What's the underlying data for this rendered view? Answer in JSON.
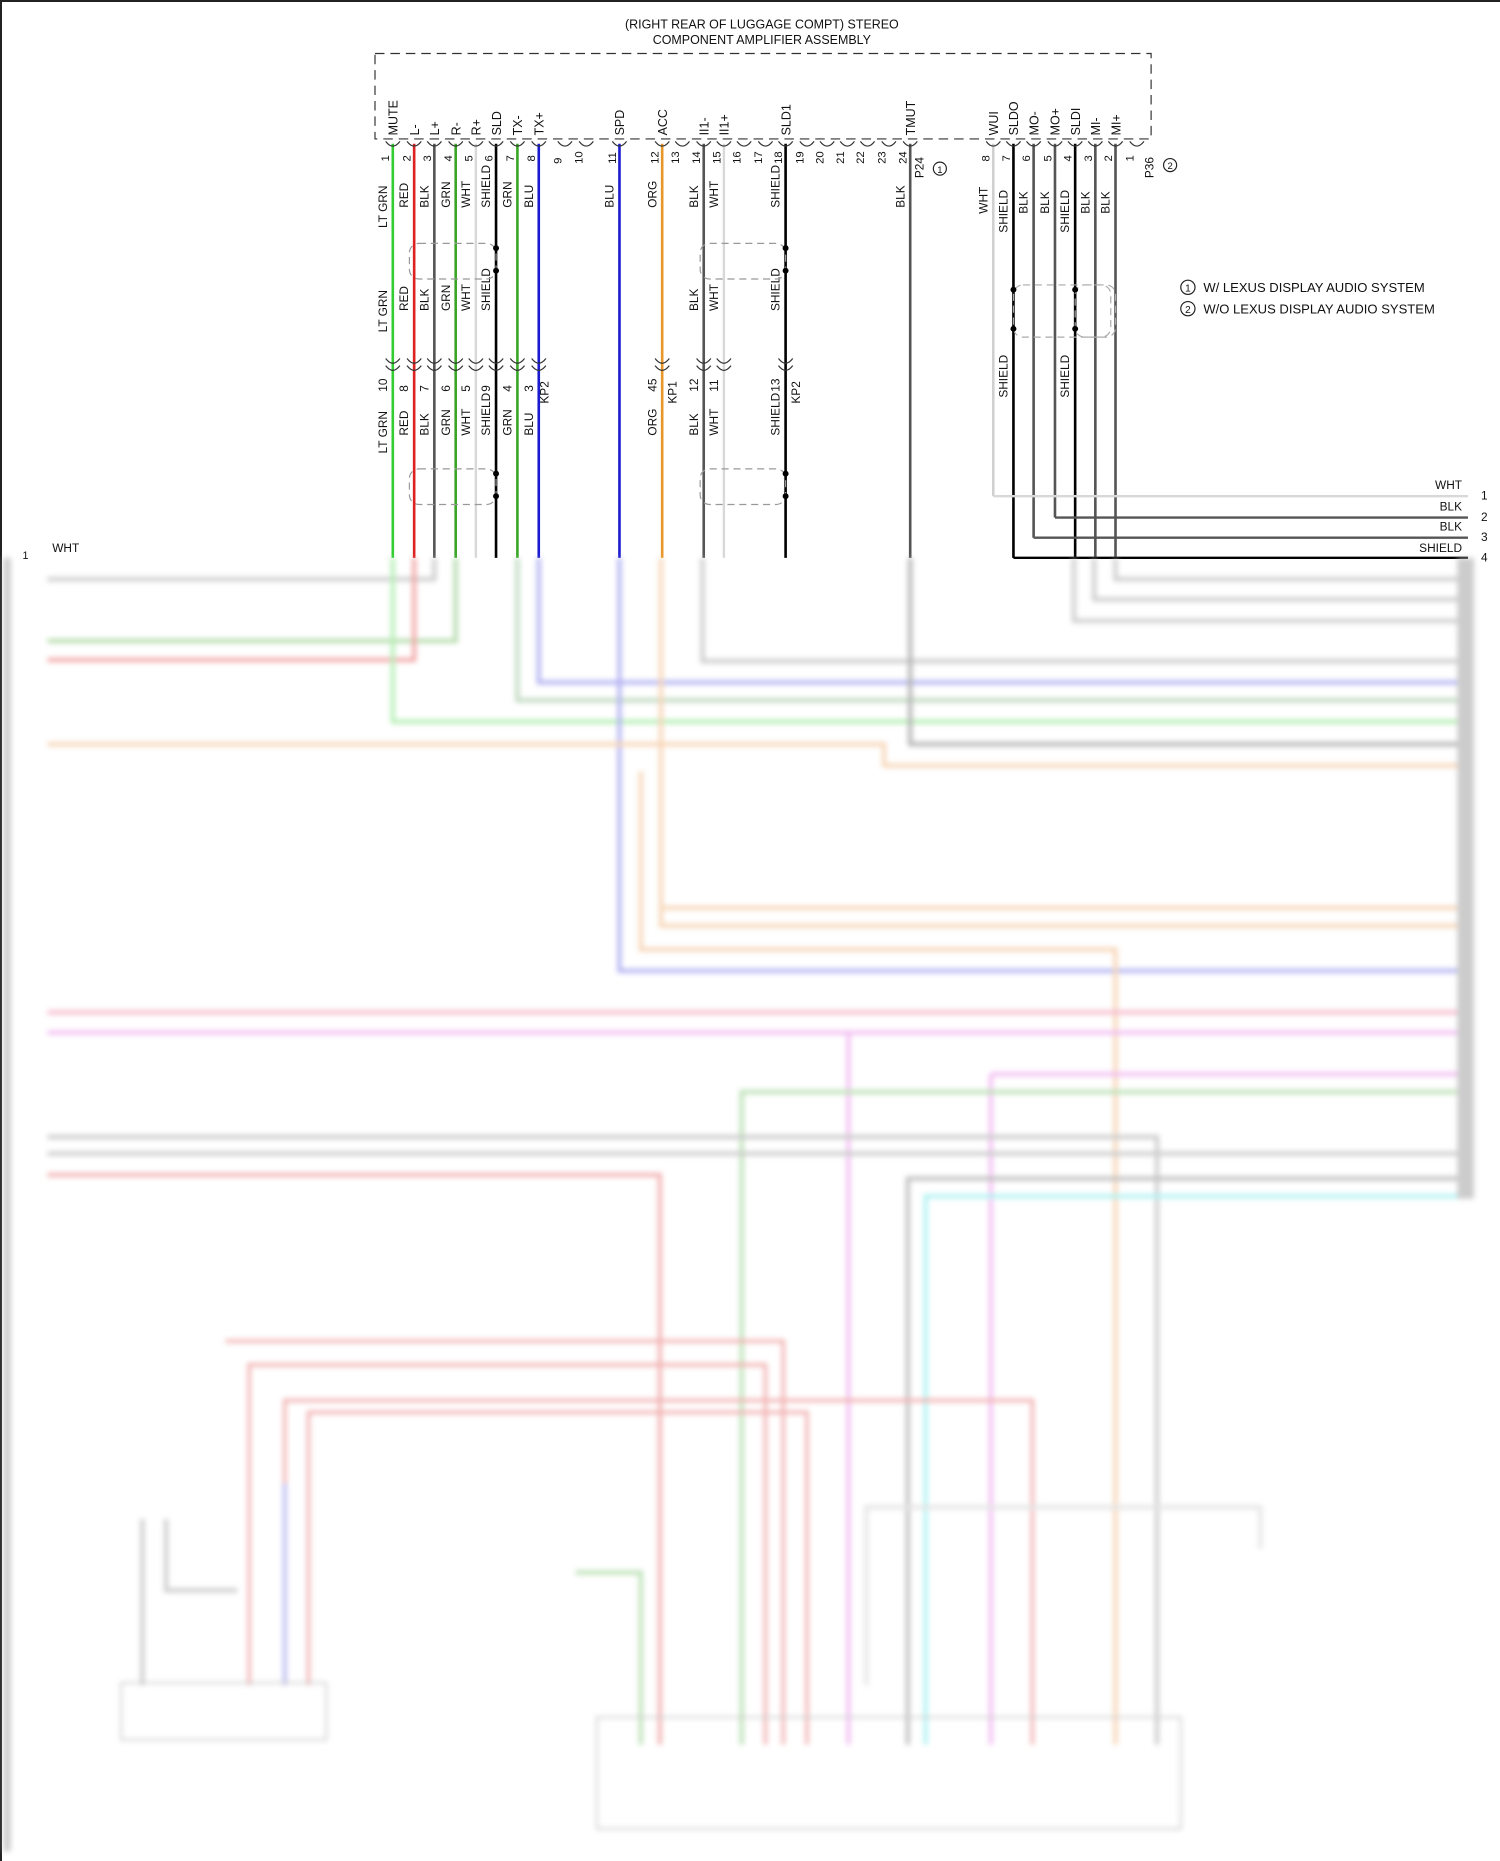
{
  "title": {
    "line1": "(RIGHT REAR OF LUGGAGE COMPT) STEREO",
    "line2": "COMPONENT AMPLIFIER ASSEMBLY"
  },
  "connector_left": {
    "name": "P24",
    "variant_mark": "1",
    "splice_connectors": [
      "KP2",
      "KP1",
      "KP2"
    ],
    "pins": [
      {
        "num": "1",
        "signal": "MUTE",
        "color": "#33cc33",
        "w1": "LT GRN",
        "w2": "LT GRN",
        "num2": "10",
        "w3": "LT GRN"
      },
      {
        "num": "2",
        "signal": "L-",
        "color": "#dd2222",
        "w1": "RED",
        "w2": "RED",
        "num2": "8",
        "w3": "RED"
      },
      {
        "num": "3",
        "signal": "L+",
        "color": "#555555",
        "w1": "BLK",
        "w2": "BLK",
        "num2": "7",
        "w3": "BLK"
      },
      {
        "num": "4",
        "signal": "R-",
        "color": "#3aa626",
        "w1": "GRN",
        "w2": "GRN",
        "num2": "6",
        "w3": "GRN"
      },
      {
        "num": "5",
        "signal": "R+",
        "color": "#d8d8d8",
        "w1": "WHT",
        "w2": "WHT",
        "num2": "5",
        "w3": "WHT"
      },
      {
        "num": "6",
        "signal": "SLD",
        "color": "#000000",
        "w1": "SHIELD",
        "w2": "SHIELD",
        "num2": "9",
        "w3": "SHIELD"
      },
      {
        "num": "7",
        "signal": "TX-",
        "color": "#3aa626",
        "w1": "GRN",
        "w2": "",
        "num2": "4",
        "w3": "GRN"
      },
      {
        "num": "8",
        "signal": "TX+",
        "color": "#1a1ad0",
        "w1": "BLU",
        "w2": "",
        "num2": "3",
        "w3": "BLU"
      },
      {
        "num": "9",
        "signal": "",
        "color": "",
        "w1": "",
        "w2": "",
        "num2": "",
        "w3": ""
      },
      {
        "num": "10",
        "signal": "",
        "color": "",
        "w1": "",
        "w2": "",
        "num2": "",
        "w3": ""
      },
      {
        "num": "11",
        "signal": "SPD",
        "color": "#1a1ad0",
        "w1": "BLU",
        "w2": "",
        "num2": "",
        "w3": ""
      },
      {
        "num": "12",
        "signal": "ACC",
        "color": "#e8962a",
        "w1": "ORG",
        "w2": "",
        "num2": "45",
        "w3": "ORG"
      },
      {
        "num": "13",
        "signal": "",
        "color": "",
        "w1": "",
        "w2": "",
        "num2": "",
        "w3": ""
      },
      {
        "num": "14",
        "signal": "II1-",
        "color": "#555555",
        "w1": "BLK",
        "w2": "BLK",
        "num2": "12",
        "w3": "BLK"
      },
      {
        "num": "15",
        "signal": "II1+",
        "color": "#d8d8d8",
        "w1": "WHT",
        "w2": "WHT",
        "num2": "11",
        "w3": "WHT"
      },
      {
        "num": "16",
        "signal": "",
        "color": "",
        "w1": "",
        "w2": "",
        "num2": "",
        "w3": ""
      },
      {
        "num": "17",
        "signal": "",
        "color": "",
        "w1": "",
        "w2": "",
        "num2": "",
        "w3": ""
      },
      {
        "num": "18",
        "signal": "SLD1",
        "color": "#000000",
        "w1": "SHIELD",
        "w2": "SHIELD",
        "num2": "13",
        "w3": "SHIELD"
      },
      {
        "num": "19",
        "signal": "",
        "color": "",
        "w1": "",
        "w2": "",
        "num2": "",
        "w3": ""
      },
      {
        "num": "20",
        "signal": "",
        "color": "",
        "w1": "",
        "w2": "",
        "num2": "",
        "w3": ""
      },
      {
        "num": "21",
        "signal": "",
        "color": "",
        "w1": "",
        "w2": "",
        "num2": "",
        "w3": ""
      },
      {
        "num": "22",
        "signal": "",
        "color": "",
        "w1": "",
        "w2": "",
        "num2": "",
        "w3": ""
      },
      {
        "num": "23",
        "signal": "",
        "color": "",
        "w1": "",
        "w2": "",
        "num2": "",
        "w3": ""
      },
      {
        "num": "24",
        "signal": "TMUT",
        "color": "#555555",
        "w1": "BLK",
        "w2": "",
        "num2": "",
        "w3": ""
      }
    ]
  },
  "connector_right": {
    "name": "P36",
    "variant_mark": "2",
    "pins": [
      {
        "num": "8",
        "signal": "WUI",
        "color": "#d0d0d0",
        "w1": "WHT",
        "w3": ""
      },
      {
        "num": "7",
        "signal": "SLDO",
        "color": "#000000",
        "w1": "SHIELD",
        "w3": "SHIELD"
      },
      {
        "num": "6",
        "signal": "MO-",
        "color": "#555555",
        "w1": "BLK",
        "w3": ""
      },
      {
        "num": "5",
        "signal": "MO+",
        "color": "#555555",
        "w1": "BLK",
        "w3": ""
      },
      {
        "num": "4",
        "signal": "SLDI",
        "color": "#000000",
        "w1": "SHIELD",
        "w3": "SHIELD"
      },
      {
        "num": "3",
        "signal": "MI-",
        "color": "#555555",
        "w1": "BLK",
        "w3": ""
      },
      {
        "num": "2",
        "signal": "MI+",
        "color": "#555555",
        "w1": "BLK",
        "w3": ""
      },
      {
        "num": "1",
        "signal": "",
        "color": "",
        "w1": "",
        "w3": ""
      }
    ]
  },
  "legend": [
    {
      "mark": "1",
      "text": "W/ LEXUS DISPLAY AUDIO SYSTEM"
    },
    {
      "mark": "2",
      "text": "W/O LEXUS DISPLAY AUDIO SYSTEM"
    }
  ],
  "right_outputs": [
    {
      "wire": "WHT",
      "pin": "1"
    },
    {
      "wire": "BLK",
      "pin": "2"
    },
    {
      "wire": "BLK",
      "pin": "3"
    },
    {
      "wire": "SHIELD",
      "pin": "4"
    }
  ],
  "left_output": {
    "wire": "WHT",
    "pin": "1"
  }
}
